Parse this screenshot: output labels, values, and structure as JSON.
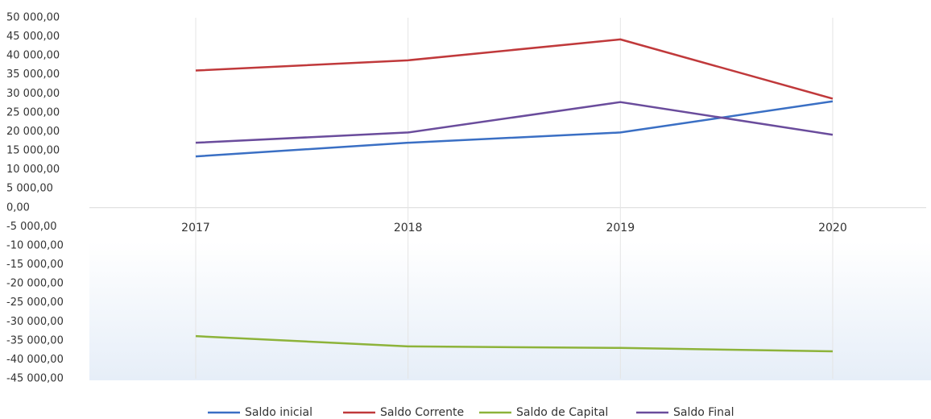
{
  "chart_data": {
    "type": "line",
    "categories": [
      "2017",
      "2018",
      "2019",
      "2020"
    ],
    "series": [
      {
        "name": "Saldo inicial",
        "color": "#3a6fc4",
        "values": [
          13500,
          17100,
          19800,
          28000
        ]
      },
      {
        "name": "Saldo Corrente",
        "color": "#c0393b",
        "values": [
          36100,
          38800,
          44300,
          28700
        ]
      },
      {
        "name": "Saldo de Capital",
        "color": "#8db33a",
        "values": [
          -33800,
          -36500,
          -36900,
          -37800
        ]
      },
      {
        "name": "Saldo Final",
        "color": "#6a4c9c",
        "values": [
          17100,
          19800,
          27800,
          19200
        ]
      }
    ],
    "ylim": [
      -45000,
      50000
    ],
    "yticks": [
      {
        "value": 50000,
        "label": "50 000,00"
      },
      {
        "value": 45000,
        "label": "45 000,00"
      },
      {
        "value": 40000,
        "label": "40 000,00"
      },
      {
        "value": 35000,
        "label": "35 000,00"
      },
      {
        "value": 30000,
        "label": "30 000,00"
      },
      {
        "value": 25000,
        "label": "25 000,00"
      },
      {
        "value": 20000,
        "label": "20 000,00"
      },
      {
        "value": 15000,
        "label": "15 000,00"
      },
      {
        "value": 10000,
        "label": "10 000,00"
      },
      {
        "value": 5000,
        "label": "5 000,00"
      },
      {
        "value": 0,
        "label": "0,00"
      },
      {
        "value": -5000,
        "label": "-5 000,00"
      },
      {
        "value": -10000,
        "label": "-10 000,00"
      },
      {
        "value": -15000,
        "label": "-15 000,00"
      },
      {
        "value": -20000,
        "label": "-20 000,00"
      },
      {
        "value": -25000,
        "label": "-25 000,00"
      },
      {
        "value": -30000,
        "label": "-30 000,00"
      },
      {
        "value": -35000,
        "label": "-35 000,00"
      },
      {
        "value": -40000,
        "label": "-40 000,00"
      },
      {
        "value": -45000,
        "label": "-45 000,00"
      }
    ],
    "legend": "bottom"
  }
}
